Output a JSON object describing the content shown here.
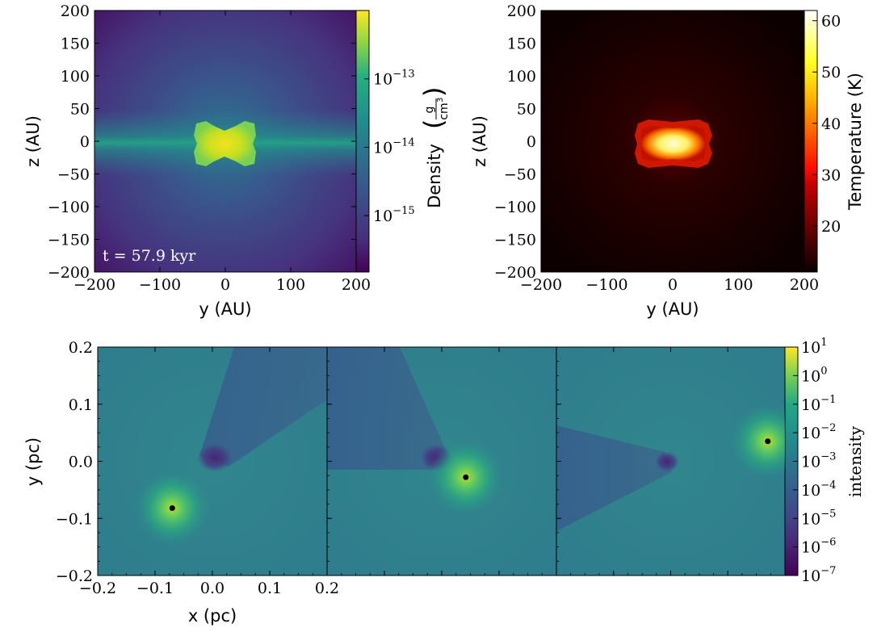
{
  "chart_data": [
    {
      "type": "heatmap",
      "panel": "density",
      "xlabel": "y  (AU)",
      "ylabel": "z  (AU)",
      "xlim": [
        -200,
        200
      ],
      "ylim": [
        -200,
        200
      ],
      "xticks": [
        "−200",
        "−100",
        "0",
        "100",
        "200"
      ],
      "yticks": [
        "200",
        "150",
        "100",
        "50",
        "0",
        "−50",
        "−100",
        "−150",
        "−200"
      ],
      "annotation": "t = 57.9 kyr",
      "colorbar": {
        "label": "Density",
        "unit_num": "g",
        "unit_den": "cm",
        "unit_exp": "3",
        "scale": "log",
        "ticks": [
          {
            "base": "10",
            "exp": "−13",
            "value": 1e-13
          },
          {
            "base": "10",
            "exp": "−14",
            "value": 1e-14
          },
          {
            "base": "10",
            "exp": "−15",
            "value": 1e-15
          }
        ],
        "colormap": "viridis"
      },
      "features": {
        "dense_core_halfwidth_AU": 40,
        "dense_core_halfheight_AU": 30,
        "peak_density": 5e-13,
        "background_density": 3e-16
      }
    },
    {
      "type": "heatmap",
      "panel": "temperature",
      "xlabel": "y  (AU)",
      "ylabel": "z  (AU)",
      "xlim": [
        -200,
        200
      ],
      "ylim": [
        -200,
        200
      ],
      "xticks": [
        "−200",
        "−100",
        "0",
        "100",
        "200"
      ],
      "yticks": [
        "200",
        "150",
        "100",
        "50",
        "0",
        "−50",
        "−100",
        "−150",
        "−200"
      ],
      "colorbar": {
        "label": "Temperature (K)",
        "scale": "linear",
        "range": [
          11,
          62
        ],
        "ticks": [
          "60",
          "50",
          "40",
          "30",
          "20"
        ],
        "colormap": "hot"
      },
      "features": {
        "hot_core_halfwidth_AU": 45,
        "hot_core_halfheight_AU": 25,
        "peak_temperature": 60,
        "background_temperature": 11
      }
    },
    {
      "type": "heatmap",
      "panel": "intensity",
      "subplots": 3,
      "xlabel": "x  (pc)",
      "ylabel": "y  (pc)",
      "xlim": [
        -0.2,
        0.2
      ],
      "ylim": [
        -0.2,
        0.2
      ],
      "xticks": [
        "−0.2",
        "−0.1",
        "0.0",
        "0.1",
        "0.2"
      ],
      "yticks": [
        "0.2",
        "0.1",
        "0.0",
        "−0.1",
        "−0.2"
      ],
      "sources": [
        {
          "x": -0.07,
          "y": -0.082
        },
        {
          "x": 0.042,
          "y": -0.028
        },
        {
          "x": 0.17,
          "y": 0.035
        }
      ],
      "dark_core": [
        {
          "x": 0.0,
          "y": -0.0
        },
        {
          "x": 0.0,
          "y": 0.0
        },
        {
          "x": 0.0,
          "y": 0.0
        }
      ],
      "colorbar": {
        "label": "intensity",
        "scale": "log",
        "range": [
          1e-07,
          10
        ],
        "ticks": [
          {
            "base": "10",
            "exp": "1"
          },
          {
            "base": "10",
            "exp": "0"
          },
          {
            "base": "10",
            "exp": "−1"
          },
          {
            "base": "10",
            "exp": "−2"
          },
          {
            "base": "10",
            "exp": "−3"
          },
          {
            "base": "10",
            "exp": "−4"
          },
          {
            "base": "10",
            "exp": "−5"
          },
          {
            "base": "10",
            "exp": "−6"
          },
          {
            "base": "10",
            "exp": "−7"
          }
        ],
        "colormap": "viridis"
      }
    }
  ]
}
